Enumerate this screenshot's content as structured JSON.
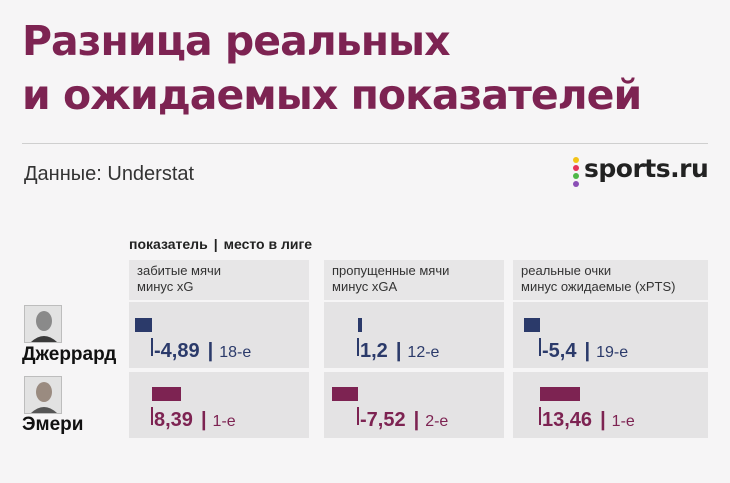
{
  "title": {
    "line1": "Разница реальных",
    "line2": "и ожидаемых показателей"
  },
  "source": "Данные: Understat",
  "brand": {
    "name": "sports.ru",
    "dot_colors": [
      "#f3c317",
      "#e5335a",
      "#4fb848",
      "#8b4fb6"
    ]
  },
  "legend": {
    "metric_label": "показатель",
    "separator": "|",
    "rank_label": "место в лиге"
  },
  "colors": {
    "gerrard": "#2b3a6a",
    "emery": "#7d2352"
  },
  "chart_data": {
    "type": "bar",
    "title": "Разница реальных и ожидаемых показателей",
    "categories": [
      [
        "забитые мячи",
        "минус xG"
      ],
      [
        "пропущенные мячи",
        "минус xGA"
      ],
      [
        "реальные очки",
        "минус ожидаемые (xPTS)"
      ]
    ],
    "series": [
      {
        "name": "Джеррард",
        "color": "#2b3a6a",
        "values": [
          -4.89,
          1.2,
          -5.4
        ],
        "labels": [
          "-4,89",
          "1,2",
          "-5,4"
        ],
        "ranks": [
          "18-е",
          "12-е",
          "19-е"
        ]
      },
      {
        "name": "Эмери",
        "color": "#7d2352",
        "values": [
          8.39,
          -7.52,
          13.46
        ],
        "labels": [
          "8,39",
          "-7,52",
          "13,46"
        ],
        "ranks": [
          "1-е",
          "2-е",
          "1-е"
        ]
      }
    ]
  }
}
